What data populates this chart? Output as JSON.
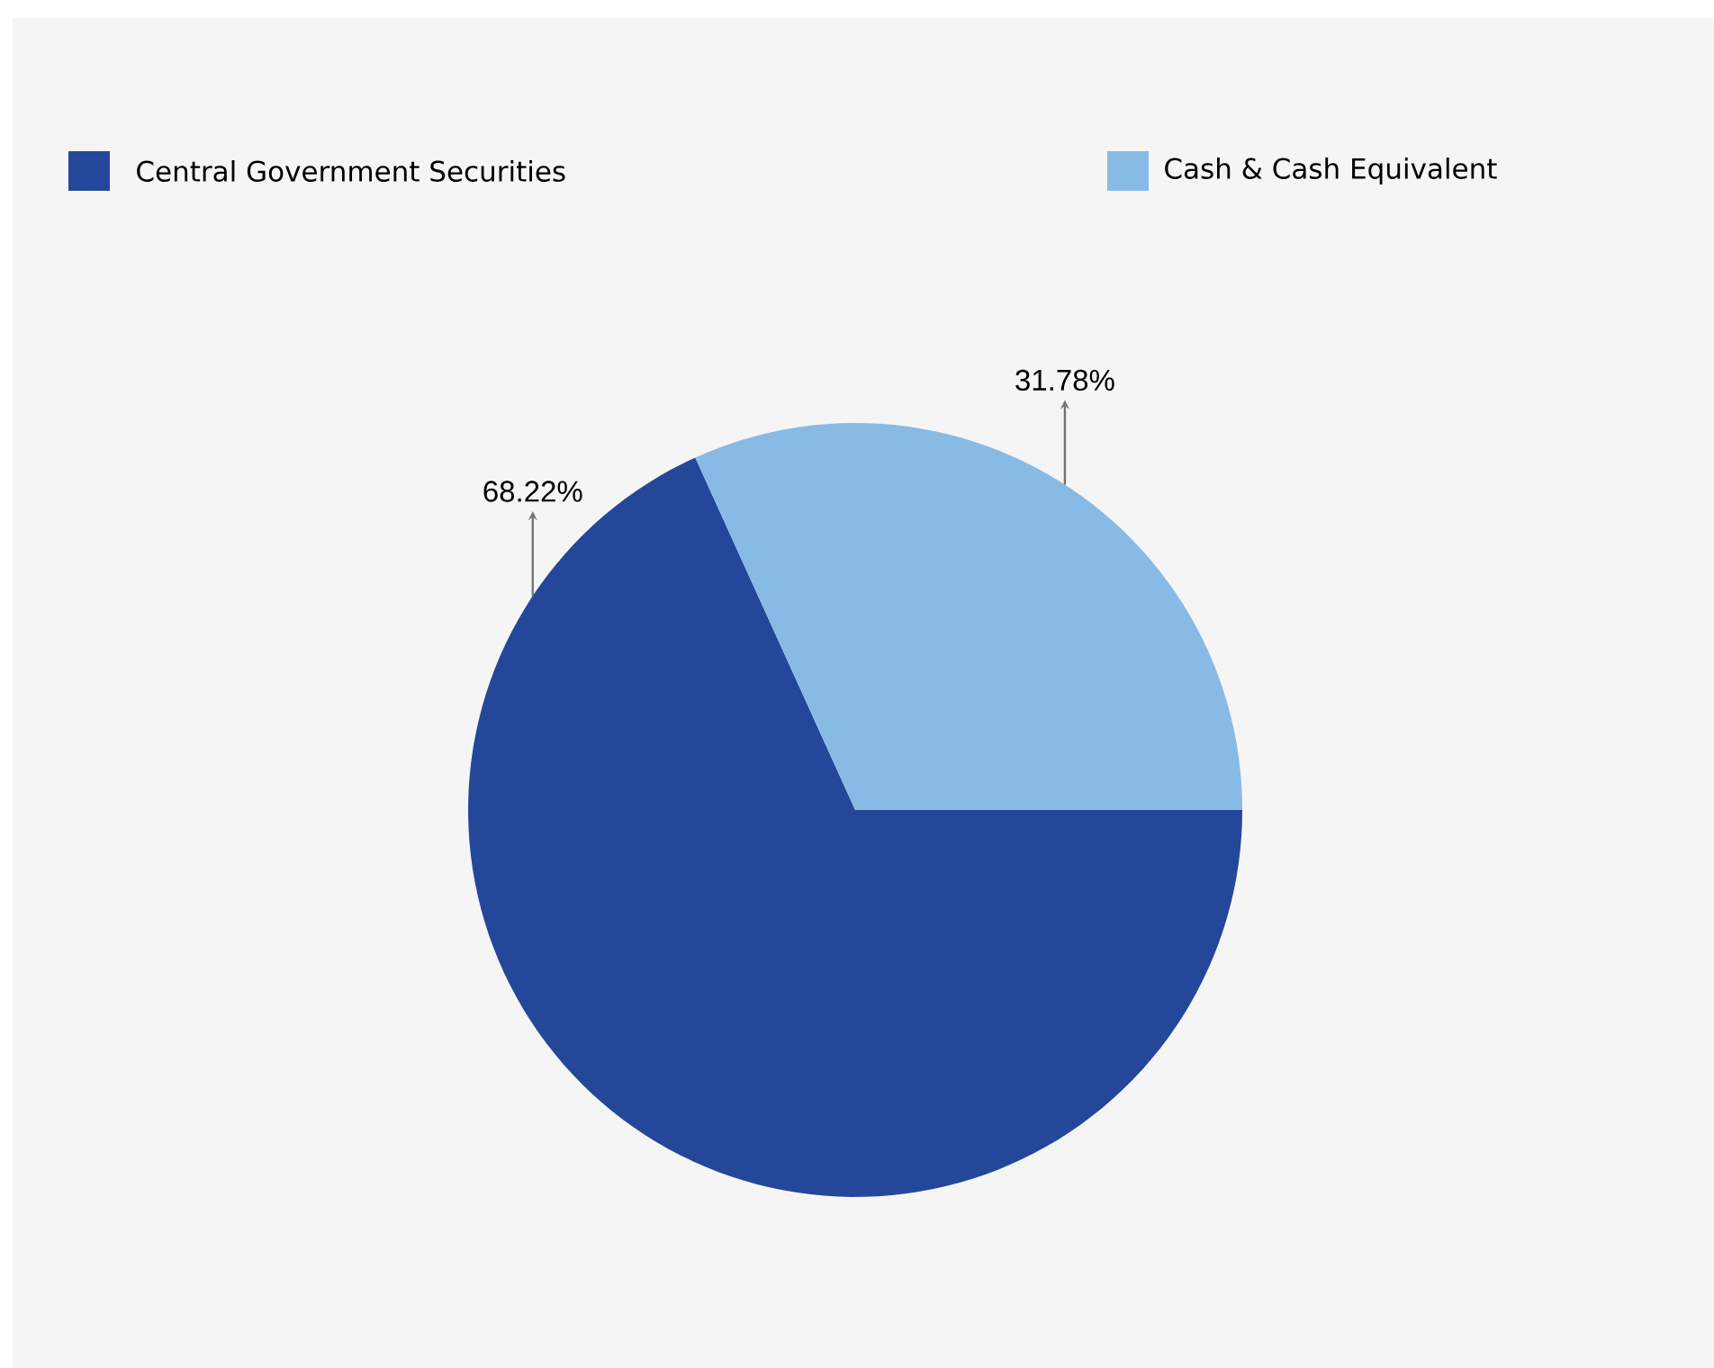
{
  "chart_data": {
    "type": "pie",
    "categories": [
      "Central Government Securities",
      "Cash & Cash Equivalent"
    ],
    "values": [
      68.22,
      31.78
    ],
    "colors": [
      "#25479a",
      "#88bae6"
    ],
    "value_labels": [
      "68.22%",
      "31.78%"
    ],
    "legend": "top"
  }
}
